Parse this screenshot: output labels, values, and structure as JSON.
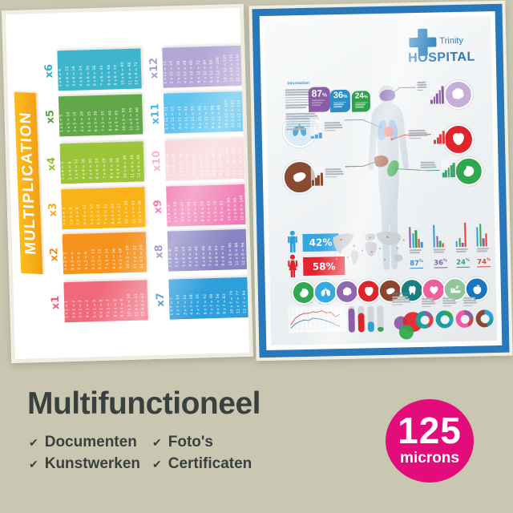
{
  "page": {
    "background": "#c9c7b1"
  },
  "caption": {
    "title": "Multifunctioneel",
    "text_color": "#39413f",
    "items": [
      {
        "check": "✔",
        "label": "Documenten"
      },
      {
        "check": "✔",
        "label": "Foto's"
      },
      {
        "check": "✔",
        "label": "Kunstwerken"
      },
      {
        "check": "✔",
        "label": "Certificaten"
      }
    ]
  },
  "thickness_badge": {
    "value": "125",
    "unit": "microns",
    "color": "#e20c7b"
  },
  "multiplication_poster": {
    "title": "MULTIPLICATION",
    "banner_color": "#f8ac1b",
    "tables": [
      {
        "label": "x1",
        "color": "#f0697b",
        "label_color": "#ef5f74",
        "rows": [
          "1 x 1 = 1",
          "2 x 1 = 2",
          "3 x 1 = 3",
          "4 x 1 = 4",
          "5 x 1 = 5",
          "6 x 1 = 6",
          "7 x 1 = 7",
          "8 x 1 = 8",
          "9 x 1 = 9",
          "10 x 1 = 10",
          "11 x 1 = 11",
          "12 x 1 = 12"
        ]
      },
      {
        "label": "x2",
        "color": "#f6921e",
        "label_color": "#f28a1a",
        "rows": [
          "1 x 2 = 2",
          "2 x 2 = 4",
          "3 x 2 = 6",
          "4 x 2 = 8",
          "5 x 2 = 10",
          "6 x 2 = 12",
          "7 x 2 = 14",
          "8 x 2 = 16",
          "9 x 2 = 18",
          "10 x 2 = 20",
          "11 x 2 = 22",
          "12 x 2 = 24"
        ]
      },
      {
        "label": "x3",
        "color": "#fab317",
        "label_color": "#f6ad14",
        "rows": [
          "1 x 3 = 3",
          "2 x 3 = 6",
          "3 x 3 = 9",
          "4 x 3 = 12",
          "5 x 3 = 15",
          "6 x 3 = 18",
          "7 x 3 = 21",
          "8 x 3 = 24",
          "9 x 3 = 27",
          "10 x 3 = 30",
          "11 x 3 = 33",
          "12 x 3 = 36"
        ]
      },
      {
        "label": "x4",
        "color": "#9dc53a",
        "label_color": "#96bf35",
        "rows": [
          "1 x 4 = 4",
          "2 x 4 = 8",
          "3 x 4 = 12",
          "4 x 4 = 16",
          "5 x 4 = 20",
          "6 x 4 = 24",
          "7 x 4 = 28",
          "8 x 4 = 32",
          "9 x 4 = 36",
          "10 x 4 = 40",
          "11 x 4 = 44",
          "12 x 4 = 48"
        ]
      },
      {
        "label": "x5",
        "color": "#61a848",
        "label_color": "#5aa243",
        "rows": [
          "1 x 5 = 5",
          "2 x 5 = 10",
          "3 x 5 = 15",
          "4 x 5 = 20",
          "5 x 5 = 25",
          "6 x 5 = 30",
          "7 x 5 = 35",
          "8 x 5 = 40",
          "9 x 5 = 45",
          "10 x 5 = 50",
          "11 x 5 = 55",
          "12 x 5 = 60"
        ]
      },
      {
        "label": "x6",
        "color": "#3eb5cd",
        "label_color": "#38afc8",
        "rows": [
          "1 x 6 = 6",
          "2 x 6 = 12",
          "3 x 6 = 18",
          "4 x 6 = 24",
          "5 x 6 = 30",
          "6 x 6 = 36",
          "7 x 6 = 42",
          "8 x 6 = 48",
          "9 x 6 = 54",
          "10 x 6 = 60",
          "11 x 6 = 66",
          "12 x 6 = 72"
        ]
      },
      {
        "label": "x7",
        "color": "#2f9fdc",
        "label_color": "#2383c4",
        "rows": [
          "1 x 7 = 7",
          "2 x 7 = 14",
          "3 x 7 = 21",
          "4 x 7 = 28",
          "5 x 7 = 35",
          "6 x 7 = 42",
          "7 x 7 = 49",
          "8 x 7 = 56",
          "9 x 7 = 63",
          "10 x 7 = 70",
          "11 x 7 = 77",
          "12 x 7 = 84"
        ]
      },
      {
        "label": "x8",
        "color": "#8983c3",
        "label_color": "#7f79bd",
        "rows": [
          "1 x 8 = 8",
          "2 x 8 = 16",
          "3 x 8 = 24",
          "4 x 8 = 32",
          "5 x 8 = 40",
          "6 x 8 = 48",
          "7 x 8 = 56",
          "8 x 8 = 64",
          "9 x 8 = 72",
          "10 x 8 = 80",
          "11 x 8 = 88",
          "12 x 8 = 96"
        ]
      },
      {
        "label": "x9",
        "color": "#f07ab2",
        "label_color": "#ee6fab",
        "rows": [
          "1 x 9 = 9",
          "2 x 9 = 18",
          "3 x 9 = 27",
          "4 x 9 = 36",
          "5 x 9 = 45",
          "6 x 9 = 54",
          "7 x 9 = 63",
          "8 x 9 = 72",
          "9 x 9 = 81",
          "10 x 9 = 90",
          "11 x 9 = 99",
          "12 x 9 = 108"
        ]
      },
      {
        "label": "x10",
        "color": "#f8d6dc",
        "label_color": "#f2bac7",
        "rows": [
          "1 x 10 = 10",
          "2 x 10 = 20",
          "3 x 10 = 30",
          "4 x 10 = 40",
          "5 x 10 = 50",
          "6 x 10 = 60",
          "7 x 10 = 70",
          "8 x 10 = 80",
          "9 x 10 = 90",
          "10 x 10 = 100",
          "11 x 10 = 110",
          "12 x 10 = 120"
        ]
      },
      {
        "label": "x11",
        "color": "#5fc4ef",
        "label_color": "#4db8ea",
        "rows": [
          "1 x 11 = 11",
          "2 x 11 = 22",
          "3 x 11 = 33",
          "4 x 11 = 44",
          "5 x 11 = 55",
          "6 x 11 = 66",
          "7 x 11 = 77",
          "8 x 11 = 88",
          "9 x 11 = 99",
          "10 x 11 = 110",
          "11 x 11 = 121",
          "12 x 11 = 132"
        ]
      },
      {
        "label": "x12",
        "color": "#b4a7d6",
        "label_color": "#ab9dd1",
        "rows": [
          "1 x 12 = 12",
          "2 x 12 = 24",
          "3 x 12 = 36",
          "4 x 12 = 48",
          "5 x 12 = 60",
          "6 x 12 = 72",
          "7 x 12 = 84",
          "8 x 12 = 96",
          "9 x 12 = 108",
          "10 x 12 = 120",
          "11 x 12 = 132",
          "12 x 12 = 144"
        ]
      }
    ]
  },
  "hospital_poster": {
    "frame_color": "#2878ba",
    "brand": {
      "line1": "Trinity",
      "line2": "HOSPITAL",
      "color": "#2878ba"
    },
    "information_label": "Information",
    "stat_badges": [
      {
        "value": "87",
        "unit": "%",
        "color": "#8a5da5"
      },
      {
        "value": "36",
        "unit": "%",
        "color": "#2d8dc6"
      },
      {
        "value": "24",
        "unit": "%",
        "color": "#2fa14b"
      }
    ],
    "gender_stats": [
      {
        "icon": "male-icon",
        "value": "42%",
        "box_color": "#35a7e0",
        "icon_color": "#2f9fd8"
      },
      {
        "icon": "female-icon",
        "value": "58%",
        "box_color": "#e8222d",
        "icon_color": "#e0242b"
      }
    ],
    "callouts": [
      {
        "organ": "brain",
        "color": "#8a5da5"
      },
      {
        "organ": "heart",
        "color": "#d9433b"
      },
      {
        "organ": "stomach",
        "color": "#3aa46c"
      },
      {
        "organ": "lungs",
        "color": "#5aa7d8"
      },
      {
        "organ": "liver",
        "color": "#8a4a32"
      }
    ],
    "mini_bar_groups": [
      {
        "label": "87",
        "unit": "%",
        "label_color": "#3d8fc9",
        "bars": [
          [
            "#8a5da5",
            26
          ],
          [
            "#2f9fd8",
            18
          ],
          [
            "#3aa449",
            22
          ],
          [
            "#d9433b",
            11
          ],
          [
            "#2f9fd8",
            7
          ]
        ]
      },
      {
        "label": "36",
        "unit": "%",
        "label_color": "#7a62ae",
        "bars": [
          [
            "#2f9fd8",
            28
          ],
          [
            "#8a5da5",
            14
          ],
          [
            "#3aa449",
            8
          ],
          [
            "#d9433b",
            5
          ]
        ]
      },
      {
        "label": "24",
        "unit": "%",
        "label_color": "#2f9e77",
        "bars": [
          [
            "#2f9fd8",
            7
          ],
          [
            "#3aa449",
            11
          ],
          [
            "#8a5da5",
            5
          ],
          [
            "#d9433b",
            30
          ]
        ]
      },
      {
        "label": "74",
        "unit": "%",
        "label_color": "#d9433b",
        "bars": [
          [
            "#2f9fd8",
            24
          ],
          [
            "#3aa449",
            28
          ],
          [
            "#8a5da5",
            10
          ],
          [
            "#d9433b",
            16
          ]
        ]
      }
    ],
    "organ_icons": [
      {
        "name": "stomach-icon",
        "color": "#2fa84f"
      },
      {
        "name": "lungs-icon",
        "color": "#35a9e1"
      },
      {
        "name": "brain-icon",
        "color": "#8e68b0"
      },
      {
        "name": "heart-organ-icon",
        "color": "#e0242b"
      },
      {
        "name": "liver-icon",
        "color": "#8a4631"
      },
      {
        "name": "tooth-icon",
        "color": "#17807e"
      },
      {
        "name": "heart-icon",
        "color": "#ee5f9f"
      },
      {
        "name": "sleep-icon",
        "color": "#8fc79a"
      },
      {
        "name": "apple-icon",
        "color": "#1b75bc"
      }
    ],
    "rounded_bars": [
      [
        "#8a5da5",
        30
      ],
      [
        "#e0242b",
        24
      ],
      [
        "#2f9fd8",
        13
      ],
      [
        "#3aa449",
        6
      ]
    ],
    "venn": [
      [
        "#8a5da5",
        154,
        372,
        17
      ],
      [
        "#e0242b",
        165,
        367,
        25
      ],
      [
        "#2fa84f",
        160,
        383,
        18
      ]
    ],
    "donuts": [
      {
        "segments": [
          [
            "#8a5da5",
            18
          ],
          [
            "#d9433b",
            24
          ],
          [
            "#1d9e9e",
            58
          ]
        ]
      },
      {
        "segments": [
          [
            "#2fa84f",
            22
          ],
          [
            "#2f9fd8",
            12
          ],
          [
            "#1d9e9e",
            66
          ]
        ]
      },
      {
        "segments": [
          [
            "#8a5da5",
            26
          ],
          [
            "#d9433b",
            16
          ],
          [
            "#ef5aa7",
            58
          ]
        ]
      },
      {
        "segments": [
          [
            "#2f9fd8",
            26
          ],
          [
            "#1d9e9e",
            18
          ],
          [
            "#8a4631",
            56
          ]
        ]
      }
    ],
    "line_chart": {
      "series": [
        {
          "name": "red",
          "color": "#d9433b",
          "points": [
            24,
            16,
            12,
            10,
            10,
            8,
            9,
            7,
            10,
            9,
            15,
            12
          ]
        },
        {
          "name": "blue",
          "color": "#4a7ebb",
          "points": [
            28,
            23,
            20,
            18,
            19,
            16,
            17,
            18,
            20,
            22,
            25,
            27
          ]
        }
      ]
    }
  }
}
